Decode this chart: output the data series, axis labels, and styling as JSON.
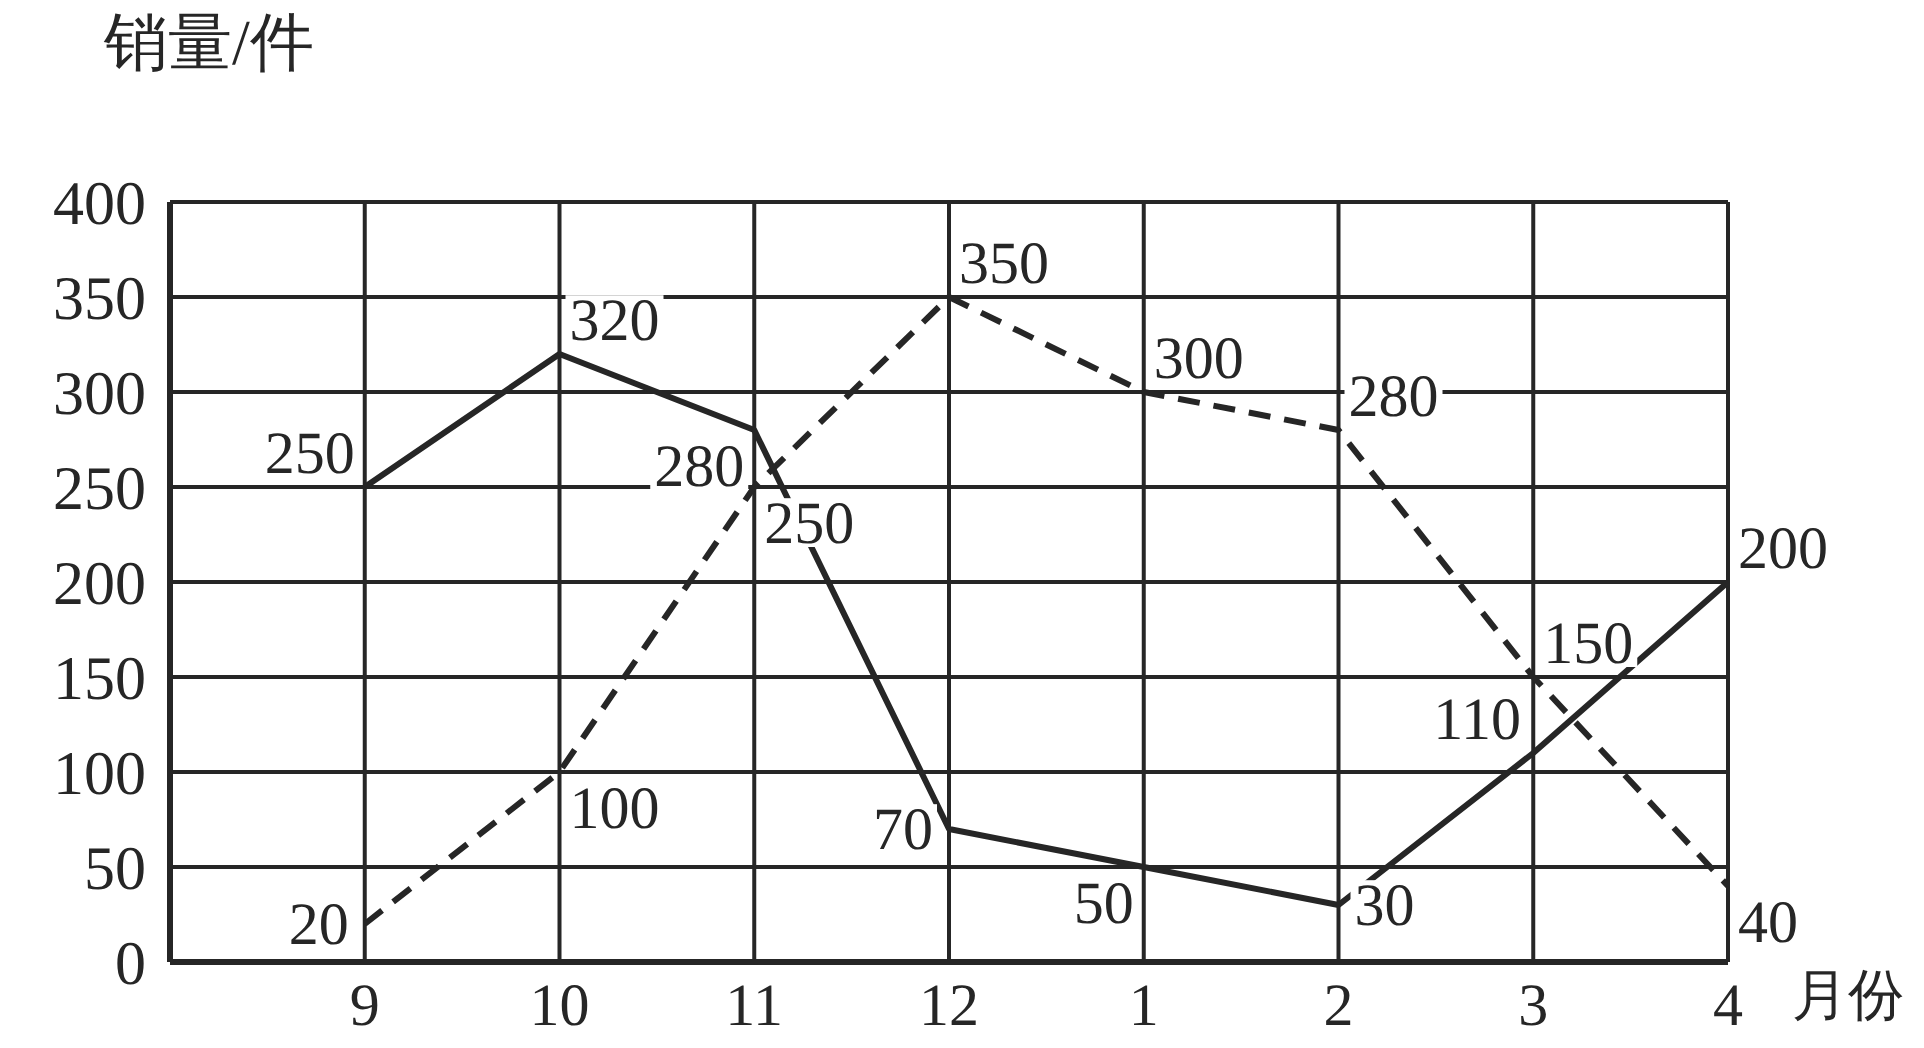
{
  "chart_data": {
    "type": "line",
    "xlabel": "月份",
    "ylabel": "销量/件",
    "categories": [
      "9",
      "10",
      "11",
      "12",
      "1",
      "2",
      "3",
      "4"
    ],
    "series": [
      {
        "color": "#262626",
        "line_style": "solid",
        "values": [
          250,
          320,
          280,
          70,
          50,
          30,
          110,
          200
        ]
      },
      {
        "color": "#262626",
        "line_style": "dashed",
        "values": [
          20,
          100,
          250,
          350,
          300,
          280,
          150,
          40
        ]
      }
    ],
    "ylim": [
      0,
      400
    ],
    "yticks": [
      0,
      50,
      100,
      150,
      200,
      250,
      300,
      350,
      400
    ],
    "grid": true,
    "marker": "none",
    "data_labels": true
  }
}
